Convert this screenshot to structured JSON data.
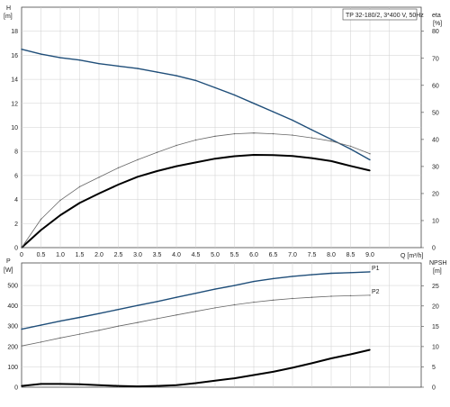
{
  "chart_data": [
    {
      "type": "line",
      "title": "TP 32-180/2, 3*400 V, 50Hz",
      "xlabel": "Q [m³/h]",
      "x_ticks": [
        "0",
        "0.5",
        "1.0",
        "1.5",
        "2.0",
        "2.5",
        "3.0",
        "3.5",
        "4.0",
        "4.5",
        "5.0",
        "5.5",
        "6.0",
        "6.5",
        "7.0",
        "7.5",
        "8.0",
        "8.5",
        "9.0"
      ],
      "xlim": [
        0,
        10
      ],
      "y_left": {
        "label_top": "H",
        "label_unit": "[m]",
        "ticks": [
          "0",
          "2",
          "4",
          "6",
          "8",
          "10",
          "12",
          "14",
          "16",
          "18"
        ],
        "lim": [
          0,
          20
        ]
      },
      "y_right": {
        "label_top": "eta",
        "label_unit": "[%]",
        "ticks": [
          "0",
          "10",
          "20",
          "30",
          "40",
          "50",
          "60",
          "70",
          "80"
        ],
        "lim": [
          0,
          88.9
        ]
      },
      "grid": true,
      "series": [
        {
          "axis": "left",
          "color": "#1f4e79",
          "width": 1.4,
          "x": [
            0,
            0.5,
            1.0,
            1.5,
            2.0,
            2.5,
            3.0,
            3.5,
            4.0,
            4.5,
            5.0,
            5.5,
            6.0,
            6.5,
            7.0,
            7.5,
            8.0,
            8.5,
            9.0
          ],
          "y": [
            16.5,
            16.1,
            15.8,
            15.6,
            15.3,
            15.1,
            14.9,
            14.6,
            14.3,
            13.9,
            13.3,
            12.7,
            12.0,
            11.3,
            10.6,
            9.8,
            9.0,
            8.2,
            7.3
          ]
        },
        {
          "axis": "right",
          "color": "#000000",
          "width": 2.0,
          "x": [
            0,
            0.5,
            1.0,
            1.5,
            2.0,
            2.5,
            3.0,
            3.5,
            4.0,
            4.5,
            5.0,
            5.5,
            6.0,
            6.5,
            7.0,
            7.5,
            8.0,
            8.5,
            9.0
          ],
          "y": [
            0,
            6.5,
            12.0,
            16.5,
            20.0,
            23.3,
            26.2,
            28.3,
            30.1,
            31.5,
            32.9,
            33.8,
            34.3,
            34.2,
            33.9,
            33.1,
            32.0,
            30.2,
            28.5
          ]
        },
        {
          "axis": "right",
          "color": "#666666",
          "width": 0.8,
          "x": [
            0,
            0.5,
            1.0,
            1.5,
            2.0,
            2.5,
            3.0,
            3.5,
            4.0,
            4.5,
            5.0,
            5.5,
            6.0,
            6.5,
            7.0,
            7.5,
            8.0,
            8.5,
            9.0
          ],
          "y": [
            0,
            10.5,
            17.5,
            22.5,
            26.0,
            29.5,
            32.5,
            35.2,
            37.8,
            39.8,
            41.2,
            42.1,
            42.4,
            42.1,
            41.6,
            40.6,
            39.4,
            37.5,
            34.7
          ]
        }
      ]
    },
    {
      "type": "line",
      "xlim": [
        0,
        10
      ],
      "y_left": {
        "label_top": "P",
        "label_unit": "[W]",
        "ticks": [
          "0",
          "100",
          "200",
          "300",
          "400",
          "500"
        ],
        "lim": [
          0,
          611
        ]
      },
      "y_right": {
        "label_top": "NPSH",
        "label_unit": "[m]",
        "ticks": [
          "0",
          "5",
          "10",
          "15",
          "20",
          "25"
        ],
        "lim": [
          0,
          30.6
        ]
      },
      "grid": true,
      "series": [
        {
          "name": "P1",
          "axis": "left",
          "color": "#1f4e79",
          "width": 1.4,
          "x": [
            0,
            0.5,
            1.0,
            1.5,
            2.0,
            2.5,
            3.0,
            3.5,
            4.0,
            4.5,
            5.0,
            5.5,
            6.0,
            6.5,
            7.0,
            7.5,
            8.0,
            8.5,
            9.0
          ],
          "y": [
            285,
            305,
            325,
            343,
            362,
            382,
            402,
            421,
            442,
            462,
            482,
            500,
            520,
            534,
            545,
            553,
            560,
            563,
            567
          ]
        },
        {
          "name": "P2",
          "axis": "left",
          "color": "#666666",
          "width": 0.8,
          "x": [
            0,
            0.5,
            1.0,
            1.5,
            2.0,
            2.5,
            3.0,
            3.5,
            4.0,
            4.5,
            5.0,
            5.5,
            6.0,
            6.5,
            7.0,
            7.5,
            8.0,
            8.5,
            9.0
          ],
          "y": [
            203,
            222,
            242,
            261,
            280,
            300,
            318,
            337,
            355,
            373,
            390,
            405,
            418,
            428,
            436,
            442,
            447,
            450,
            452
          ]
        },
        {
          "axis": "right",
          "color": "#000000",
          "width": 2.0,
          "x": [
            0,
            0.5,
            1.0,
            1.5,
            2.0,
            2.5,
            3.0,
            3.5,
            4.0,
            4.5,
            5.0,
            5.5,
            6.0,
            6.5,
            7.0,
            7.5,
            8.0,
            8.5,
            9.0
          ],
          "y": [
            0.3,
            0.8,
            0.8,
            0.7,
            0.5,
            0.3,
            0.2,
            0.3,
            0.5,
            1.0,
            1.6,
            2.2,
            3.0,
            3.8,
            4.8,
            5.9,
            7.1,
            8.1,
            9.2
          ]
        }
      ]
    }
  ]
}
